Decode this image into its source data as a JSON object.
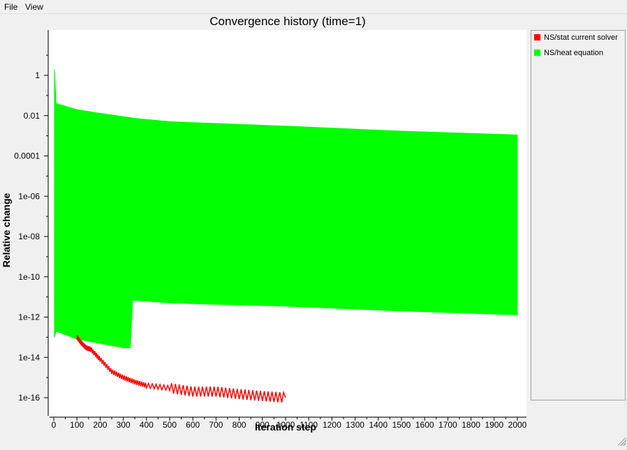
{
  "menu": {
    "file": "File",
    "view": "View"
  },
  "chart_data": {
    "type": "line",
    "title": "Convergence history (time=1)",
    "xlabel": "Iteration step",
    "ylabel": "Relative change",
    "xlim": [
      0,
      2000
    ],
    "ylim": [
      1e-16,
      1
    ],
    "yscale": "log",
    "xticks": [
      0,
      100,
      200,
      300,
      400,
      500,
      600,
      700,
      800,
      900,
      1000,
      1100,
      1200,
      1300,
      1400,
      1500,
      1600,
      1700,
      1800,
      1900,
      2000
    ],
    "ytick_labels": [
      "1",
      "0.01",
      "0.0001",
      "1e-06",
      "1e-08",
      "1e-10",
      "1e-12",
      "1e-14",
      "1e-16"
    ],
    "ytick_values": [
      1,
      0.01,
      0.0001,
      1e-06,
      1e-08,
      1e-10,
      1e-12,
      1e-14,
      1e-16
    ],
    "grid": false,
    "legend_position": "right",
    "series": [
      {
        "name": "NS/stat current solver",
        "color": "#ff0000",
        "x": [
          100,
          120,
          140,
          160,
          200,
          250,
          300,
          350,
          400,
          500,
          600,
          700,
          800,
          900,
          1000
        ],
        "y": [
          1e-13,
          5e-14,
          3e-14,
          2.5e-14,
          8e-15,
          2e-15,
          1e-15,
          6e-16,
          4e-16,
          3e-16,
          2e-16,
          2e-16,
          1.5e-16,
          1.2e-16,
          1e-16
        ]
      },
      {
        "name": "NS/heat equation",
        "color": "#00ff00",
        "x": [
          3,
          10,
          100,
          200,
          300,
          330,
          340,
          500,
          1000,
          1500,
          2000
        ],
        "upper": [
          2,
          0.04,
          0.02,
          0.013,
          0.009,
          0.008,
          0.0075,
          0.005,
          0.003,
          0.0017,
          0.0011
        ],
        "lower": [
          1e-13,
          2e-13,
          8e-14,
          5e-14,
          3e-14,
          3e-14,
          7e-12,
          5e-12,
          3.5e-12,
          2e-12,
          1.3e-12
        ]
      }
    ]
  }
}
